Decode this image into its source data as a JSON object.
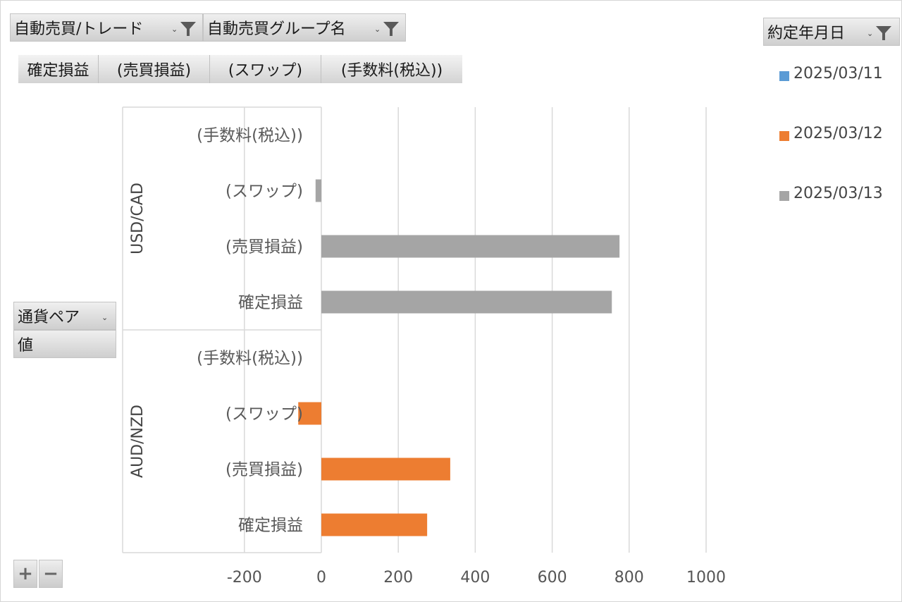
{
  "filters": {
    "trade_label": "自動売買/トレード",
    "group_label": "自動売買グループ名",
    "date_label": "約定年月日"
  },
  "value_buttons": [
    "確定損益",
    "(売買損益)",
    "(スワップ)",
    "(手数料(税込))"
  ],
  "row_fields": {
    "pair_label": "通貨ペア",
    "value_label": "値"
  },
  "zoom": {
    "plus": "+",
    "minus": "−"
  },
  "icons": {
    "filter": "filter-funnel-icon",
    "dropdown": "dropdown-arrow-icon"
  },
  "colors": {
    "2025/03/11": "#5b9bd5",
    "2025/03/12": "#ed7d31",
    "2025/03/13": "#a5a5a5"
  },
  "chart_data": {
    "type": "bar",
    "orientation": "horizontal",
    "groups": [
      {
        "name": "USD/CAD",
        "categories": [
          "(手数料(税込))",
          "(スワップ)",
          "(売買損益)",
          "確定損益"
        ]
      },
      {
        "name": "AUD/NZD",
        "categories": [
          "(手数料(税込))",
          "(スワップ)",
          "(売買損益)",
          "確定損益"
        ]
      }
    ],
    "series": [
      {
        "name": "2025/03/11",
        "color": "#5b9bd5",
        "values": {
          "USD/CAD": [
            0,
            0,
            0,
            0
          ],
          "AUD/NZD": [
            0,
            0,
            0,
            0
          ]
        }
      },
      {
        "name": "2025/03/12",
        "color": "#ed7d31",
        "values": {
          "USD/CAD": [
            0,
            0,
            0,
            0
          ],
          "AUD/NZD": [
            0,
            -60,
            335,
            275
          ]
        }
      },
      {
        "name": "2025/03/13",
        "color": "#a5a5a5",
        "values": {
          "USD/CAD": [
            0,
            -15,
            775,
            755
          ],
          "AUD/NZD": [
            0,
            0,
            0,
            0
          ]
        }
      }
    ],
    "x_ticks": [
      "-200",
      "0",
      "200",
      "400",
      "600",
      "800",
      "1000"
    ],
    "xlim": [
      -200,
      1000
    ],
    "grid": true,
    "legend_position": "right"
  }
}
